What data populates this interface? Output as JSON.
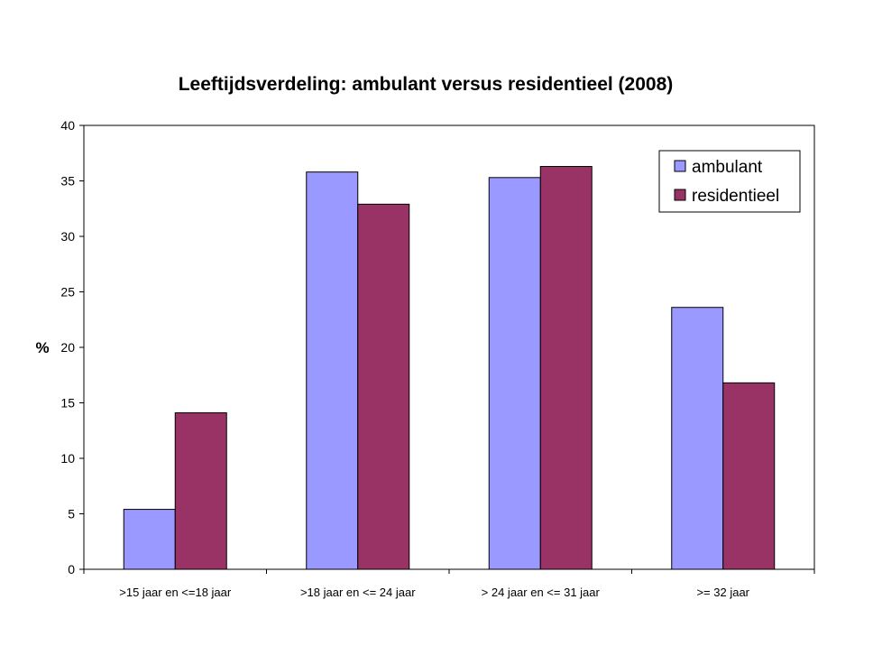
{
  "chart_data": {
    "type": "bar",
    "title": "Leeftijdsverdeling: ambulant versus residentieel (2008)",
    "xlabel": "",
    "ylabel": "%",
    "ylim": [
      0,
      40
    ],
    "yticks": [
      0,
      5,
      10,
      15,
      20,
      25,
      30,
      35,
      40
    ],
    "grid": false,
    "legend_position": "top-right",
    "categories": [
      ">15 jaar en <=18 jaar",
      ">18 jaar en <= 24 jaar",
      "> 24 jaar en <= 31 jaar",
      ">= 32 jaar"
    ],
    "series": [
      {
        "name": "ambulant",
        "color": "#9999FF",
        "values": [
          5.4,
          35.8,
          35.3,
          23.6
        ]
      },
      {
        "name": "residentieel",
        "color": "#993366",
        "values": [
          14.1,
          32.9,
          36.3,
          16.8
        ]
      }
    ]
  }
}
